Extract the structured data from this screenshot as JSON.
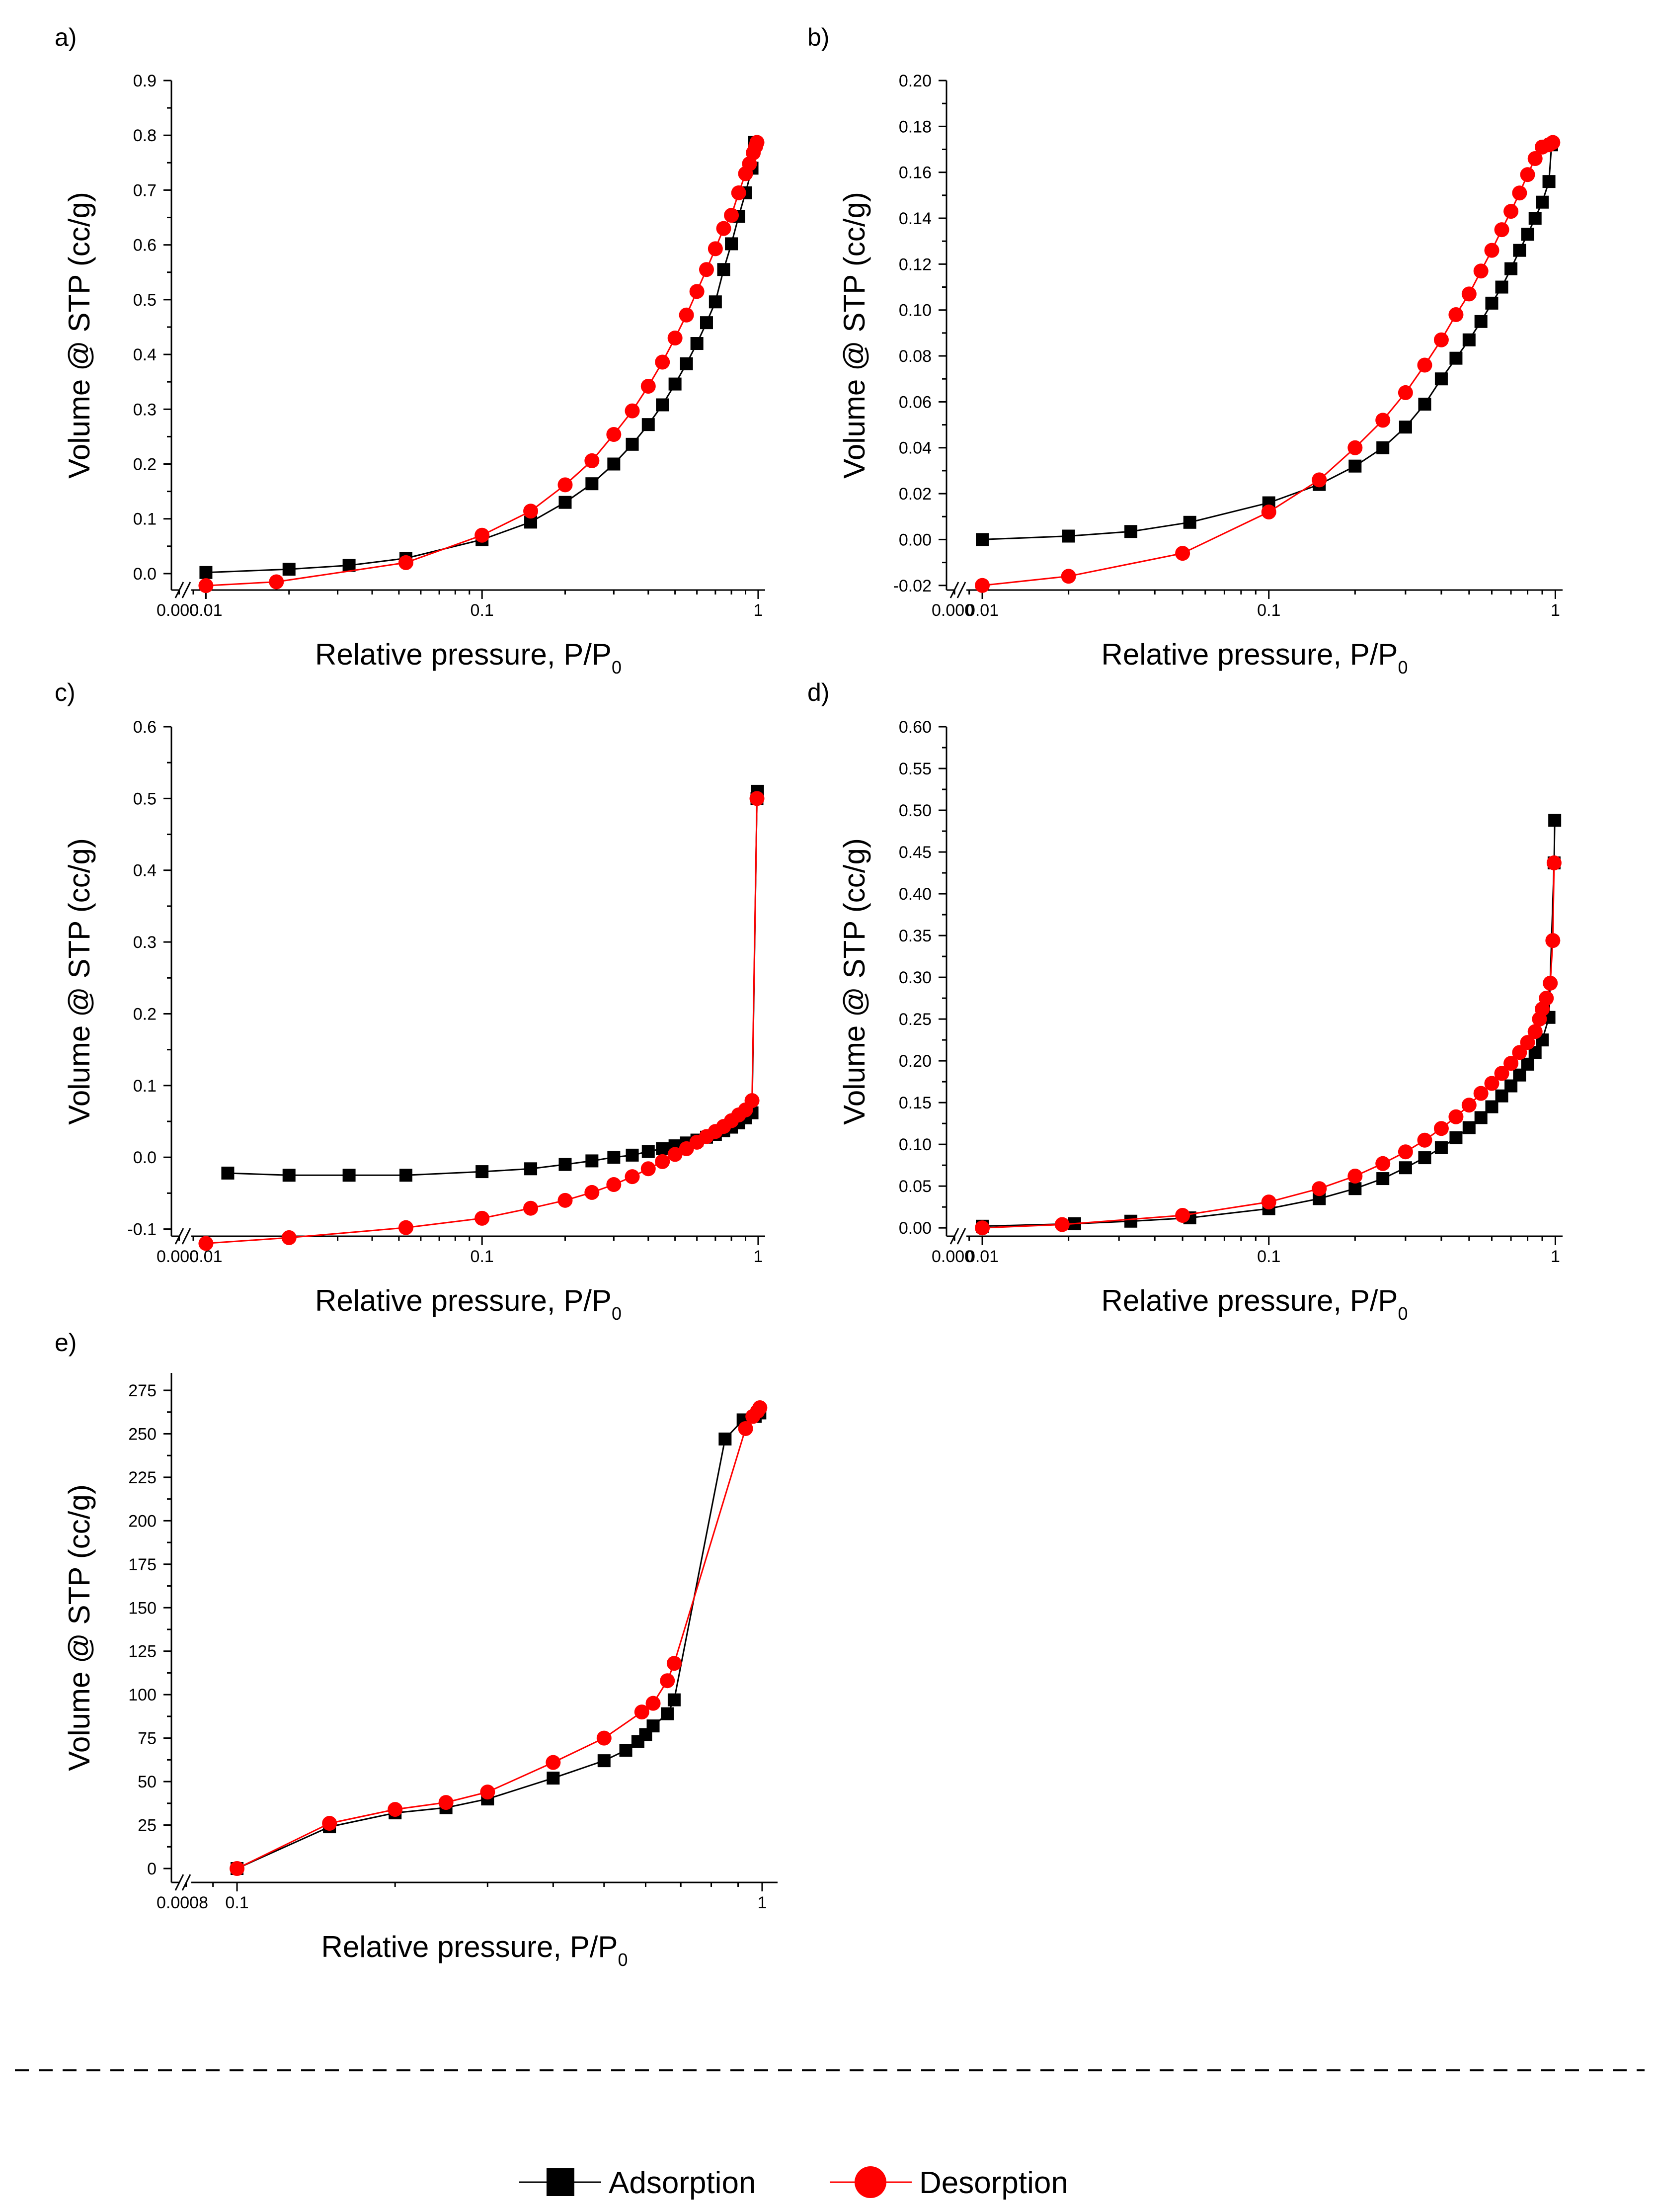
{
  "figure": {
    "legend": [
      {
        "label": "Adsorption",
        "marker": "square",
        "color": "#000000"
      },
      {
        "label": "Desorption",
        "marker": "circle",
        "color": "#ff0000"
      }
    ]
  },
  "chart_data": [
    {
      "panel": "a)",
      "type": "scatter",
      "x_scale": "log",
      "xlabel": "Relative pressure, P/P",
      "xlabel_sub": "0",
      "ylabel": "Volume @ STP (cc/g)",
      "ylim": [
        -0.03,
        0.9
      ],
      "xlim": [
        0.0075,
        1.06
      ],
      "yticks": [
        "0.0",
        "0.1",
        "0.2",
        "0.3",
        "0.4",
        "0.5",
        "0.6",
        "0.7",
        "0.8",
        "0.9"
      ],
      "ytick_values": [
        0.0,
        0.1,
        0.2,
        0.3,
        0.4,
        0.5,
        0.6,
        0.7,
        0.8,
        0.9
      ],
      "xticks": [
        "0.01",
        "0.1",
        "1"
      ],
      "xtick_values": [
        0.01,
        0.1,
        1
      ],
      "break_label": "0.000",
      "series": [
        {
          "name": "Adsorption",
          "x": [
            0.01,
            0.02,
            0.033,
            0.053,
            0.1,
            0.15,
            0.2,
            0.25,
            0.3,
            0.35,
            0.4,
            0.45,
            0.5,
            0.55,
            0.6,
            0.65,
            0.7,
            0.75,
            0.8,
            0.85,
            0.9,
            0.95,
            0.97
          ],
          "y": [
            0.002,
            0.008,
            0.015,
            0.028,
            0.062,
            0.094,
            0.13,
            0.164,
            0.2,
            0.236,
            0.272,
            0.308,
            0.346,
            0.383,
            0.42,
            0.458,
            0.496,
            0.555,
            0.602,
            0.652,
            0.695,
            0.74,
            0.787
          ]
        },
        {
          "name": "Desorption",
          "x": [
            0.01,
            0.018,
            0.053,
            0.1,
            0.15,
            0.2,
            0.25,
            0.3,
            0.35,
            0.4,
            0.45,
            0.5,
            0.55,
            0.6,
            0.65,
            0.7,
            0.75,
            0.8,
            0.85,
            0.9,
            0.93,
            0.96,
            0.98,
            0.99
          ],
          "y": [
            -0.022,
            -0.015,
            0.02,
            0.07,
            0.114,
            0.162,
            0.206,
            0.254,
            0.297,
            0.342,
            0.386,
            0.43,
            0.472,
            0.515,
            0.555,
            0.593,
            0.63,
            0.654,
            0.695,
            0.73,
            0.748,
            0.768,
            0.78,
            0.787
          ]
        }
      ]
    },
    {
      "panel": "b)",
      "type": "scatter",
      "x_scale": "log",
      "xlabel": "Relative pressure, P/P",
      "xlabel_sub": "0",
      "ylabel": "Volume @ STP (cc/g)",
      "ylim": [
        -0.022,
        0.2
      ],
      "xlim": [
        0.0075,
        1.06
      ],
      "yticks": [
        "-0.02",
        "0.00",
        "0.02",
        "0.04",
        "0.06",
        "0.08",
        "0.10",
        "0.12",
        "0.14",
        "0.16",
        "0.18",
        "0.20"
      ],
      "ytick_values": [
        -0.02,
        0.0,
        0.02,
        0.04,
        0.06,
        0.08,
        0.1,
        0.12,
        0.14,
        0.16,
        0.18,
        0.2
      ],
      "xticks": [
        "0.01",
        "0.1",
        "1"
      ],
      "xtick_values": [
        0.01,
        0.1,
        1
      ],
      "break_label": "0.000",
      "series": [
        {
          "name": "Adsorption",
          "x": [
            0.01,
            0.02,
            0.033,
            0.053,
            0.1,
            0.15,
            0.2,
            0.25,
            0.3,
            0.35,
            0.4,
            0.45,
            0.5,
            0.55,
            0.6,
            0.65,
            0.7,
            0.75,
            0.8,
            0.85,
            0.9,
            0.95,
            0.97
          ],
          "y": [
            0.0,
            0.0015,
            0.0035,
            0.0075,
            0.016,
            0.024,
            0.032,
            0.04,
            0.049,
            0.059,
            0.07,
            0.079,
            0.087,
            0.095,
            0.103,
            0.11,
            0.118,
            0.126,
            0.133,
            0.14,
            0.147,
            0.156,
            0.172
          ]
        },
        {
          "name": "Desorption",
          "x": [
            0.01,
            0.02,
            0.05,
            0.1,
            0.15,
            0.2,
            0.25,
            0.3,
            0.35,
            0.4,
            0.45,
            0.5,
            0.55,
            0.6,
            0.65,
            0.7,
            0.75,
            0.8,
            0.85,
            0.9,
            0.95,
            0.98
          ],
          "y": [
            -0.02,
            -0.016,
            -0.006,
            0.012,
            0.026,
            0.04,
            0.052,
            0.064,
            0.076,
            0.087,
            0.098,
            0.107,
            0.117,
            0.126,
            0.135,
            0.143,
            0.151,
            0.159,
            0.166,
            0.171,
            0.172,
            0.173
          ]
        }
      ]
    },
    {
      "panel": "c)",
      "type": "scatter",
      "x_scale": "log",
      "xlabel": "Relative pressure, P/P",
      "xlabel_sub": "0",
      "ylabel": "Volume @ STP (cc/g)",
      "ylim": [
        -0.11,
        0.6
      ],
      "xlim": [
        0.0075,
        1.06
      ],
      "yticks": [
        "-0.1",
        "0.0",
        "0.1",
        "0.2",
        "0.3",
        "0.4",
        "0.5",
        "0.6"
      ],
      "ytick_values": [
        -0.1,
        0.0,
        0.1,
        0.2,
        0.3,
        0.4,
        0.5,
        0.6
      ],
      "xticks": [
        "0.01",
        "0.1",
        "1"
      ],
      "xtick_values": [
        0.01,
        0.1,
        1
      ],
      "break_label": "0.000",
      "series": [
        {
          "name": "Adsorption",
          "x": [
            0.012,
            0.02,
            0.033,
            0.053,
            0.1,
            0.15,
            0.2,
            0.25,
            0.3,
            0.35,
            0.4,
            0.45,
            0.5,
            0.55,
            0.6,
            0.65,
            0.7,
            0.75,
            0.8,
            0.85,
            0.9,
            0.95,
            0.99,
            0.995
          ],
          "y": [
            -0.022,
            -0.025,
            -0.025,
            -0.025,
            -0.02,
            -0.016,
            -0.01,
            -0.005,
            0.0,
            0.003,
            0.008,
            0.012,
            0.016,
            0.02,
            0.024,
            0.028,
            0.032,
            0.037,
            0.042,
            0.048,
            0.055,
            0.062,
            0.5,
            0.51
          ]
        },
        {
          "name": "Desorption",
          "x": [
            0.01,
            0.02,
            0.053,
            0.1,
            0.15,
            0.2,
            0.25,
            0.3,
            0.35,
            0.4,
            0.45,
            0.5,
            0.55,
            0.6,
            0.65,
            0.7,
            0.75,
            0.8,
            0.85,
            0.9,
            0.95,
            0.99
          ],
          "y": [
            -0.12,
            -0.112,
            -0.098,
            -0.085,
            -0.071,
            -0.06,
            -0.049,
            -0.038,
            -0.027,
            -0.016,
            -0.006,
            0.004,
            0.012,
            0.021,
            0.029,
            0.036,
            0.043,
            0.051,
            0.059,
            0.066,
            0.079,
            0.5
          ]
        }
      ]
    },
    {
      "panel": "d)",
      "type": "scatter",
      "x_scale": "log",
      "xlabel": "Relative pressure, P/P",
      "xlabel_sub": "0",
      "ylabel": "Volume @ STP (cc/g)",
      "ylim": [
        -0.01,
        0.6
      ],
      "xlim": [
        0.0075,
        1.06
      ],
      "yticks": [
        "0.00",
        "0.05",
        "0.10",
        "0.15",
        "0.20",
        "0.25",
        "0.30",
        "0.35",
        "0.40",
        "0.45",
        "0.50",
        "0.55",
        "0.60"
      ],
      "ytick_values": [
        0.0,
        0.05,
        0.1,
        0.15,
        0.2,
        0.25,
        0.3,
        0.35,
        0.4,
        0.45,
        0.5,
        0.55,
        0.6
      ],
      "xticks": [
        "0.01",
        "0.1",
        "1"
      ],
      "xtick_values": [
        0.01,
        0.1,
        1
      ],
      "break_label": "0.000",
      "series": [
        {
          "name": "Adsorption",
          "x": [
            0.01,
            0.021,
            0.033,
            0.053,
            0.1,
            0.15,
            0.2,
            0.25,
            0.3,
            0.35,
            0.4,
            0.45,
            0.5,
            0.55,
            0.6,
            0.65,
            0.7,
            0.75,
            0.8,
            0.85,
            0.9,
            0.95,
            0.99,
            0.995
          ],
          "y": [
            0.002,
            0.005,
            0.008,
            0.012,
            0.023,
            0.035,
            0.047,
            0.059,
            0.072,
            0.084,
            0.096,
            0.108,
            0.12,
            0.132,
            0.145,
            0.158,
            0.17,
            0.183,
            0.196,
            0.21,
            0.225,
            0.252,
            0.437,
            0.488
          ]
        },
        {
          "name": "Desorption",
          "x": [
            0.01,
            0.019,
            0.05,
            0.1,
            0.15,
            0.2,
            0.25,
            0.3,
            0.35,
            0.4,
            0.45,
            0.5,
            0.55,
            0.6,
            0.65,
            0.7,
            0.75,
            0.8,
            0.85,
            0.88,
            0.9,
            0.93,
            0.96,
            0.98,
            0.99
          ],
          "y": [
            0.0,
            0.004,
            0.015,
            0.031,
            0.047,
            0.062,
            0.077,
            0.091,
            0.105,
            0.119,
            0.133,
            0.147,
            0.161,
            0.173,
            0.185,
            0.197,
            0.21,
            0.222,
            0.235,
            0.25,
            0.262,
            0.275,
            0.293,
            0.344,
            0.437
          ]
        }
      ]
    },
    {
      "panel": "e)",
      "type": "scatter",
      "x_scale": "log",
      "xlabel": "Relative pressure, P/P",
      "xlabel_sub": "0",
      "ylabel": "Volume @ STP (cc/g)",
      "ylim": [
        -8,
        285
      ],
      "xlim": [
        0.075,
        1.07
      ],
      "yticks": [
        "0",
        "25",
        "50",
        "75",
        "100",
        "125",
        "150",
        "175",
        "200",
        "225",
        "250",
        "275"
      ],
      "ytick_values": [
        0,
        25,
        50,
        75,
        100,
        125,
        150,
        175,
        200,
        225,
        250,
        275
      ],
      "xticks": [
        "0.1",
        "1"
      ],
      "xtick_values": [
        0.1,
        1
      ],
      "break_label": "0.0008",
      "series": [
        {
          "name": "Adsorption",
          "x": [
            0.1,
            0.15,
            0.2,
            0.25,
            0.3,
            0.4,
            0.5,
            0.55,
            0.58,
            0.6,
            0.62,
            0.66,
            0.68,
            0.85,
            0.92,
            0.97,
            0.99
          ],
          "y": [
            0,
            24,
            32,
            35,
            40,
            52,
            62,
            68,
            73,
            77,
            82,
            89,
            97,
            247,
            258,
            260,
            262
          ]
        },
        {
          "name": "Desorption",
          "x": [
            0.1,
            0.15,
            0.2,
            0.25,
            0.3,
            0.4,
            0.5,
            0.59,
            0.62,
            0.66,
            0.68,
            0.93,
            0.96,
            0.98,
            0.99
          ],
          "y": [
            0,
            26,
            34,
            38,
            44,
            61,
            75,
            90,
            95,
            108,
            118,
            253,
            260,
            263,
            265
          ]
        }
      ]
    }
  ]
}
